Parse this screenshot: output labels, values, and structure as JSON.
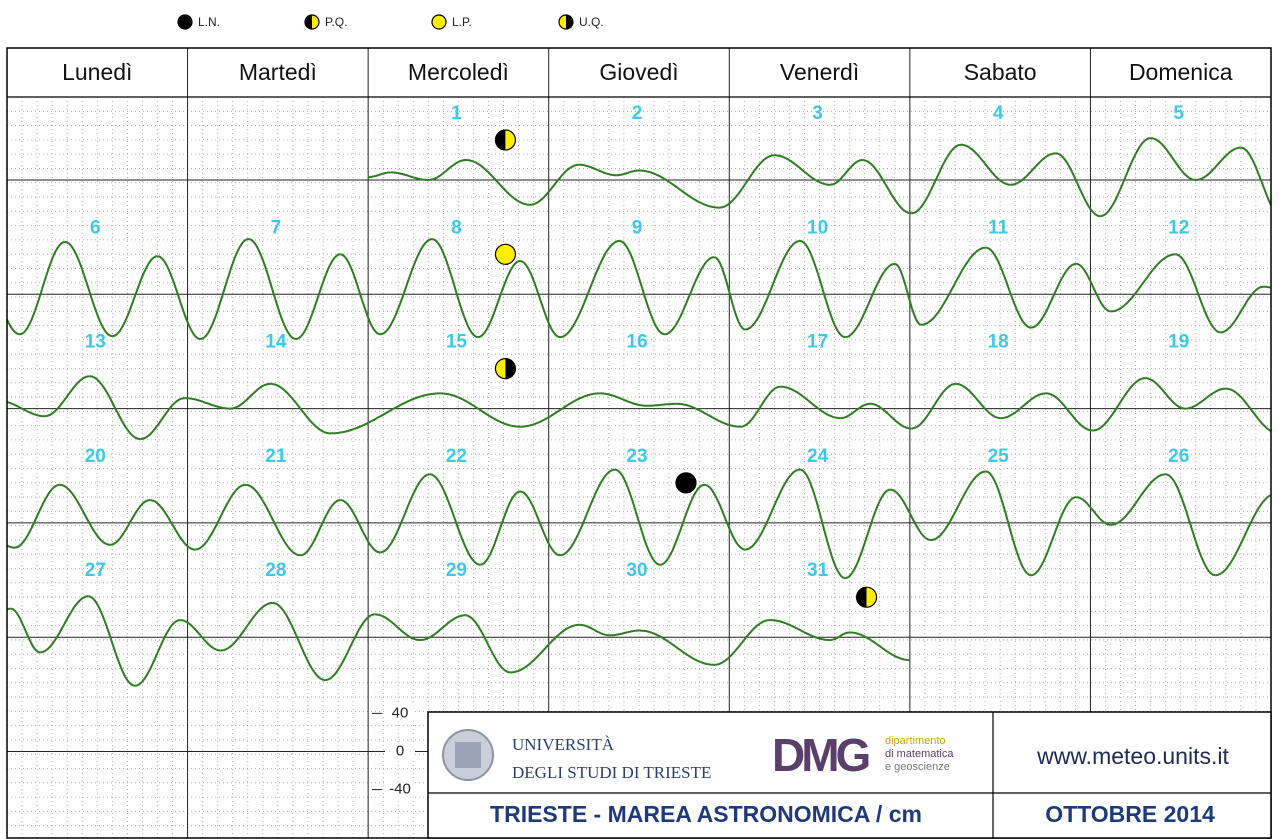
{
  "chart_data": {
    "type": "tide-calendar",
    "title": "TRIESTE - MAREA ASTRONOMICA / cm",
    "subtitle": "OTTOBRE 2014",
    "website": "www.meteo.units.it",
    "university": [
      "UNIVERSITÀ",
      "DEGLI STUDI DI TRIESTE"
    ],
    "department_logo": "DMG",
    "department": [
      "dipartimento",
      "di matematica",
      "e geoscienze"
    ],
    "categories": [
      "Lunedì",
      "Martedì",
      "Mercoledì",
      "Giovedì",
      "Venerdì",
      "Sabato",
      "Domenica"
    ],
    "moon_phases": [
      {
        "name": "L.N.",
        "colors": [
          "#000000",
          "#000000"
        ]
      },
      {
        "name": "P.Q.",
        "colors": [
          "#000000",
          "#ffee00"
        ]
      },
      {
        "name": "L.P.",
        "colors": [
          "#ffee00",
          "#ffee00"
        ]
      },
      {
        "name": "U.Q.",
        "colors": [
          "#ffee00",
          "#000000"
        ]
      }
    ],
    "color": "#2f7d22",
    "day_label_color": "#3cc8e8",
    "ylim": [
      -60,
      60
    ],
    "yticks": [
      40,
      0,
      -40
    ],
    "days": [
      {
        "day": 1,
        "moon": "P.Q.",
        "tide": [
          [
            0,
            3
          ],
          [
            3,
            8
          ],
          [
            8,
            0
          ],
          [
            13,
            21
          ],
          [
            21.5,
            -26
          ]
        ]
      },
      {
        "day": 2,
        "tide": [
          [
            4,
            16
          ],
          [
            9,
            5
          ],
          [
            12,
            10
          ],
          [
            22.7,
            -29
          ]
        ]
      },
      {
        "day": 3,
        "tide": [
          [
            6,
            26
          ],
          [
            13.4,
            -5
          ],
          [
            17.7,
            21
          ]
        ]
      },
      {
        "day": 4,
        "tide": [
          [
            0.2,
            -35
          ],
          [
            6.8,
            37
          ],
          [
            13.4,
            -5
          ],
          [
            19.4,
            28
          ]
        ]
      },
      {
        "day": 5,
        "tide": [
          [
            1.3,
            -38
          ],
          [
            8,
            44
          ],
          [
            14,
            0
          ],
          [
            20,
            34
          ]
        ]
      },
      {
        "day": 6,
        "tide": [
          [
            1.7,
            -42
          ],
          [
            7.7,
            55
          ],
          [
            14,
            -44
          ],
          [
            20,
            40
          ]
        ]
      },
      {
        "day": 7,
        "tide": [
          [
            1.7,
            -47
          ],
          [
            8.1,
            58
          ],
          [
            14.4,
            -47
          ],
          [
            20.3,
            42
          ]
        ]
      },
      {
        "day": 8,
        "moon": "L.P.",
        "tide": [
          [
            1.6,
            -42
          ],
          [
            8.5,
            58
          ],
          [
            14.6,
            -45
          ],
          [
            20.2,
            35
          ]
        ]
      },
      {
        "day": 9,
        "tide": [
          [
            1.5,
            -45
          ],
          [
            9.4,
            56
          ],
          [
            15.4,
            -42
          ],
          [
            22,
            39
          ]
        ]
      },
      {
        "day": 10,
        "tide": [
          [
            2.1,
            -37
          ],
          [
            9.4,
            56
          ],
          [
            15.4,
            -45
          ],
          [
            22,
            32
          ]
        ]
      },
      {
        "day": 11,
        "tide": [
          [
            1.5,
            -32
          ],
          [
            10.1,
            49
          ],
          [
            16.1,
            -35
          ],
          [
            22.1,
            32
          ]
        ]
      },
      {
        "day": 12,
        "tide": [
          [
            2.7,
            -18
          ],
          [
            11.3,
            42
          ],
          [
            17.3,
            -40
          ],
          [
            23,
            8
          ]
        ]
      },
      {
        "day": 13,
        "tide": [
          [
            5,
            -8
          ],
          [
            11,
            34
          ],
          [
            17.7,
            -32
          ],
          [
            23.6,
            11
          ]
        ]
      },
      {
        "day": 14,
        "tide": [
          [
            5.7,
            0
          ],
          [
            11,
            26
          ],
          [
            19,
            -26
          ]
        ]
      },
      {
        "day": 15,
        "moon": "U.Q.",
        "tide": [
          [
            9.6,
            16
          ],
          [
            20.2,
            -19
          ]
        ]
      },
      {
        "day": 16,
        "tide": [
          [
            6.8,
            16
          ],
          [
            13,
            3
          ],
          [
            17,
            5
          ]
        ]
      },
      {
        "day": 17,
        "tide": [
          [
            1.5,
            -19
          ],
          [
            6.8,
            23
          ],
          [
            14.8,
            -10
          ],
          [
            18.7,
            5
          ]
        ]
      },
      {
        "day": 18,
        "tide": [
          [
            0.2,
            -21
          ],
          [
            6.1,
            26
          ],
          [
            12.1,
            -10
          ],
          [
            18.1,
            16
          ]
        ]
      },
      {
        "day": 19,
        "tide": [
          [
            0.3,
            -23
          ],
          [
            7.3,
            32
          ],
          [
            12.6,
            0
          ],
          [
            18,
            21
          ]
        ]
      },
      {
        "day": 20,
        "tide": [
          [
            1,
            -26
          ],
          [
            7,
            40
          ],
          [
            13.7,
            -23
          ],
          [
            19,
            24
          ]
        ]
      },
      {
        "day": 21,
        "tide": [
          [
            1,
            -28
          ],
          [
            7.7,
            40
          ],
          [
            15,
            -34
          ],
          [
            20.3,
            24
          ]
        ]
      },
      {
        "day": 22,
        "tide": [
          [
            1.6,
            -31
          ],
          [
            8.2,
            51
          ],
          [
            14.9,
            -44
          ],
          [
            20.2,
            33
          ]
        ]
      },
      {
        "day": 23,
        "moon": "L.N.",
        "tide": [
          [
            1.5,
            -34
          ],
          [
            8.8,
            56
          ],
          [
            14.8,
            -44
          ],
          [
            20.7,
            40
          ]
        ]
      },
      {
        "day": 24,
        "tide": [
          [
            2.1,
            -28
          ],
          [
            9.4,
            56
          ],
          [
            15.4,
            -58
          ],
          [
            21.4,
            35
          ]
        ]
      },
      {
        "day": 25,
        "tide": [
          [
            2.8,
            -18
          ],
          [
            10.1,
            54
          ],
          [
            16.1,
            -55
          ],
          [
            22.1,
            27
          ]
        ]
      },
      {
        "day": 26,
        "tide": [
          [
            2.7,
            -2
          ],
          [
            10,
            51
          ],
          [
            16.6,
            -55
          ]
        ]
      },
      {
        "day": 27,
        "tide": [
          [
            0.5,
            30
          ],
          [
            4.4,
            -16
          ],
          [
            10.8,
            43
          ],
          [
            17,
            -51
          ],
          [
            23,
            18
          ]
        ]
      },
      {
        "day": 28,
        "tide": [
          [
            4.4,
            -14
          ],
          [
            11.3,
            36
          ],
          [
            18.3,
            -45
          ]
        ]
      },
      {
        "day": 29,
        "tide": [
          [
            0.9,
            24
          ],
          [
            6.9,
            -3
          ],
          [
            12.9,
            23
          ],
          [
            18.9,
            -37
          ]
        ]
      },
      {
        "day": 30,
        "tide": [
          [
            4.1,
            13
          ],
          [
            8.1,
            2
          ],
          [
            12.1,
            7
          ],
          [
            22,
            -29
          ]
        ]
      },
      {
        "day": 31,
        "moon": "P.Q.",
        "tide": [
          [
            5.4,
            18
          ],
          [
            13.4,
            -3
          ],
          [
            16,
            5
          ],
          [
            24,
            -24
          ]
        ]
      }
    ]
  }
}
